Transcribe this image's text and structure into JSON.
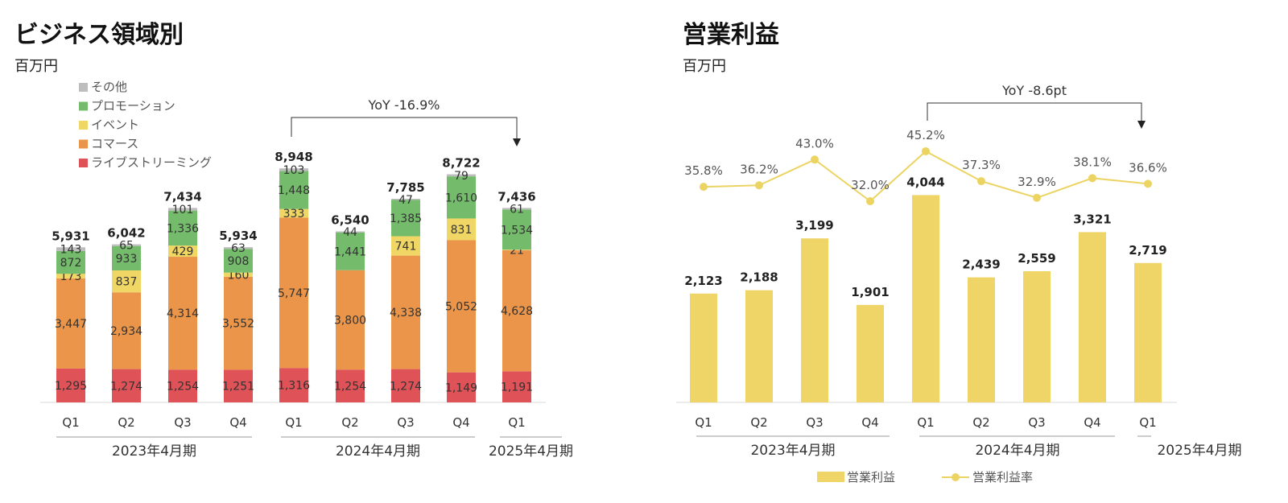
{
  "left": {
    "title": "ビジネス領域別",
    "unit": "百万円",
    "yoy": "YoY -16.9%",
    "chart_data": {
      "type": "bar",
      "stacked": true,
      "categories": [
        "Q1",
        "Q2",
        "Q3",
        "Q4",
        "Q1",
        "Q2",
        "Q3",
        "Q4",
        "Q1"
      ],
      "groups": [
        {
          "label": "2023年4月期",
          "from": 0,
          "to": 3
        },
        {
          "label": "2024年4月期",
          "from": 4,
          "to": 7
        },
        {
          "label": "2025年4月期",
          "from": 8,
          "to": 8
        }
      ],
      "series": [
        {
          "name": "ライブストリーミング",
          "color": "#df5257",
          "values": [
            1295,
            1274,
            1254,
            1251,
            1316,
            1254,
            1274,
            1149,
            1191
          ],
          "labels": [
            "1,295",
            "1,274",
            "1,254",
            "1,251",
            "1,316",
            "1,254",
            "1,274",
            "1,149",
            "1,191"
          ]
        },
        {
          "name": "コマース",
          "color": "#ea9549",
          "values": [
            3447,
            2934,
            4314,
            3552,
            5747,
            3800,
            4338,
            5052,
            4628
          ],
          "labels": [
            "3,447",
            "2,934",
            "4,314",
            "3,552",
            "5,747",
            "3,800",
            "4,338",
            "5,052",
            "4,628"
          ]
        },
        {
          "name": "イベント",
          "color": "#f0d664",
          "values": [
            173,
            837,
            429,
            160,
            333,
            0,
            741,
            831,
            21
          ],
          "labels": [
            "173",
            "837",
            "429",
            "160",
            "333",
            "",
            "741",
            "831",
            "21"
          ]
        },
        {
          "name": "プロモーション",
          "color": "#74bb6c",
          "values": [
            872,
            933,
            1336,
            908,
            1448,
            1441,
            1385,
            1610,
            1534
          ],
          "labels": [
            "872",
            "933",
            "1,336",
            "908",
            "1,448",
            "1,441",
            "1,385",
            "1,610",
            "1,534"
          ]
        },
        {
          "name": "その他",
          "color": "#bdbdbd",
          "values": [
            143,
            65,
            101,
            63,
            103,
            44,
            47,
            79,
            61
          ],
          "labels": [
            "143",
            "65",
            "101",
            "63",
            "103",
            "44",
            "47",
            "79",
            "61"
          ]
        }
      ],
      "totals": [
        "5,931",
        "6,042",
        "7,434",
        "5,934",
        "8,948",
        "6,540",
        "7,785",
        "8,722",
        "7,436"
      ],
      "legend": [
        "その他",
        "プロモーション",
        "イベント",
        "コマース",
        "ライブストリーミング"
      ]
    }
  },
  "right": {
    "title": "営業利益",
    "unit": "百万円",
    "yoy": "YoY -8.6pt",
    "chart_data": {
      "type": "bar",
      "categories": [
        "Q1",
        "Q2",
        "Q3",
        "Q4",
        "Q1",
        "Q2",
        "Q3",
        "Q4",
        "Q1"
      ],
      "groups": [
        {
          "label": "2023年4月期",
          "from": 0,
          "to": 3
        },
        {
          "label": "2024年4月期",
          "from": 4,
          "to": 7
        },
        {
          "label": "2025年4月期",
          "from": 8,
          "to": 8
        }
      ],
      "series": [
        {
          "name": "営業利益",
          "type": "bar",
          "color": "#efd567",
          "values": [
            2123,
            2188,
            3199,
            1901,
            4044,
            2439,
            2559,
            3321,
            2719
          ],
          "labels": [
            "2,123",
            "2,188",
            "3,199",
            "1,901",
            "4,044",
            "2,439",
            "2,559",
            "3,321",
            "2,719"
          ]
        },
        {
          "name": "営業利益率",
          "type": "line",
          "color": "#ecd463",
          "values": [
            35.8,
            36.2,
            43.0,
            32.0,
            45.2,
            37.3,
            32.9,
            38.1,
            36.6
          ],
          "labels": [
            "35.8%",
            "36.2%",
            "43.0%",
            "32.0%",
            "45.2%",
            "37.3%",
            "32.9%",
            "38.1%",
            "36.6%"
          ]
        }
      ]
    }
  }
}
